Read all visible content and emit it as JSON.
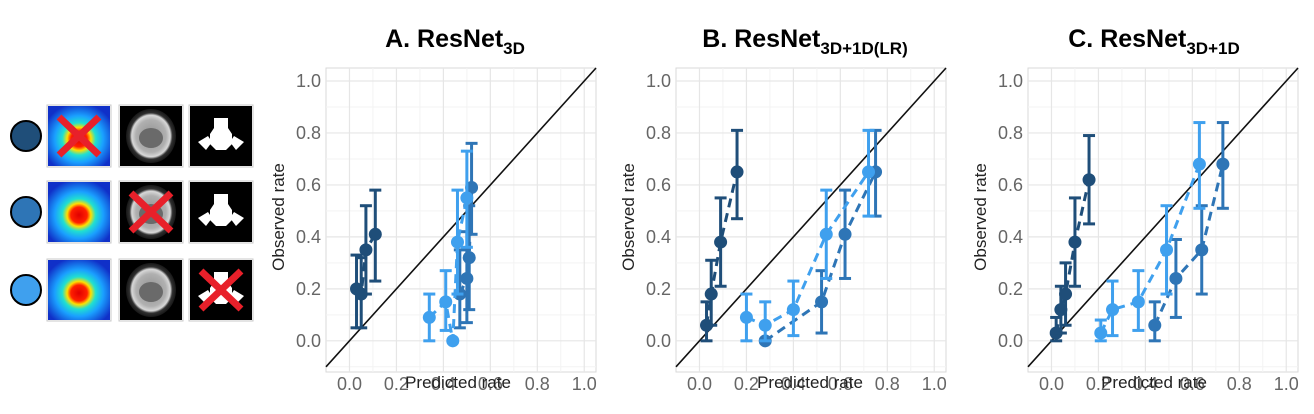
{
  "legend": {
    "rows": [
      {
        "color": "#1f4e79",
        "crossed": 1,
        "panels": [
          "dose-map",
          "ct-slice",
          "mask"
        ]
      },
      {
        "color": "#2e75b6",
        "crossed": 2,
        "panels": [
          "dose-map",
          "ct-slice",
          "mask"
        ]
      },
      {
        "color": "#3fa0ee",
        "crossed": 3,
        "panels": [
          "dose-map",
          "ct-slice",
          "mask"
        ]
      }
    ],
    "cross_color": "#e8202a"
  },
  "chart_data": [
    {
      "type": "scatter",
      "title": "A. ResNet",
      "title_sub": "3D",
      "xlabel": "Predicted rate",
      "ylabel": "Observed rate",
      "xlim": [
        -0.1,
        1.05
      ],
      "ylim": [
        -0.12,
        1.05
      ],
      "xticks": [
        "0.0",
        "0.2",
        "0.4",
        "0.6",
        "0.8",
        "1.0"
      ],
      "yticks": [
        "0.0",
        "0.2",
        "0.4",
        "0.6",
        "0.8",
        "1.0"
      ],
      "diagonal": true,
      "series": [
        {
          "name": "series-1",
          "color": "#1f4e79",
          "points": [
            {
              "x": 0.03,
              "y": 0.2,
              "lo": 0.05,
              "hi": 0.33
            },
            {
              "x": 0.05,
              "y": 0.18,
              "lo": 0.05,
              "hi": 0.32
            },
            {
              "x": 0.07,
              "y": 0.35,
              "lo": 0.18,
              "hi": 0.52
            },
            {
              "x": 0.11,
              "y": 0.41,
              "lo": 0.23,
              "hi": 0.58
            }
          ]
        },
        {
          "name": "series-2",
          "color": "#2e75b6",
          "points": [
            {
              "x": 0.47,
              "y": 0.18,
              "lo": 0.05,
              "hi": 0.35
            },
            {
              "x": 0.5,
              "y": 0.24,
              "lo": 0.07,
              "hi": 0.42
            },
            {
              "x": 0.51,
              "y": 0.32,
              "lo": 0.12,
              "hi": 0.52
            },
            {
              "x": 0.52,
              "y": 0.59,
              "lo": 0.41,
              "hi": 0.76
            }
          ]
        },
        {
          "name": "series-3",
          "color": "#3fa0ee",
          "points": [
            {
              "x": 0.34,
              "y": 0.09,
              "lo": 0.0,
              "hi": 0.18
            },
            {
              "x": 0.41,
              "y": 0.15,
              "lo": 0.04,
              "hi": 0.27
            },
            {
              "x": 0.44,
              "y": 0.0,
              "lo": 0.0,
              "hi": 0.0
            },
            {
              "x": 0.46,
              "y": 0.38,
              "lo": 0.18,
              "hi": 0.58
            },
            {
              "x": 0.5,
              "y": 0.55,
              "lo": 0.36,
              "hi": 0.73
            }
          ]
        }
      ]
    },
    {
      "type": "scatter",
      "title": "B. ResNet",
      "title_sub": "3D+1D(LR)",
      "xlabel": "Predicted rate",
      "ylabel": "Observed rate",
      "xlim": [
        -0.1,
        1.05
      ],
      "ylim": [
        -0.12,
        1.05
      ],
      "xticks": [
        "0.0",
        "0.2",
        "0.4",
        "0.6",
        "0.8",
        "1.0"
      ],
      "yticks": [
        "0.0",
        "0.2",
        "0.4",
        "0.6",
        "0.8",
        "1.0"
      ],
      "diagonal": true,
      "series": [
        {
          "name": "series-1",
          "color": "#1f4e79",
          "points": [
            {
              "x": 0.03,
              "y": 0.06,
              "lo": 0.0,
              "hi": 0.15
            },
            {
              "x": 0.05,
              "y": 0.18,
              "lo": 0.06,
              "hi": 0.31
            },
            {
              "x": 0.09,
              "y": 0.38,
              "lo": 0.21,
              "hi": 0.55
            },
            {
              "x": 0.16,
              "y": 0.65,
              "lo": 0.47,
              "hi": 0.81
            }
          ]
        },
        {
          "name": "series-2",
          "color": "#2e75b6",
          "points": [
            {
              "x": 0.28,
              "y": 0.0,
              "lo": 0.0,
              "hi": 0.0
            },
            {
              "x": 0.52,
              "y": 0.15,
              "lo": 0.03,
              "hi": 0.27
            },
            {
              "x": 0.62,
              "y": 0.41,
              "lo": 0.24,
              "hi": 0.58
            },
            {
              "x": 0.75,
              "y": 0.65,
              "lo": 0.48,
              "hi": 0.81
            }
          ]
        },
        {
          "name": "series-3",
          "color": "#3fa0ee",
          "points": [
            {
              "x": 0.2,
              "y": 0.09,
              "lo": 0.0,
              "hi": 0.18
            },
            {
              "x": 0.28,
              "y": 0.06,
              "lo": 0.0,
              "hi": 0.15
            },
            {
              "x": 0.4,
              "y": 0.12,
              "lo": 0.02,
              "hi": 0.23
            },
            {
              "x": 0.54,
              "y": 0.41,
              "lo": 0.24,
              "hi": 0.58
            },
            {
              "x": 0.72,
              "y": 0.65,
              "lo": 0.48,
              "hi": 0.81
            }
          ]
        }
      ]
    },
    {
      "type": "scatter",
      "title": "C. ResNet",
      "title_sub": "3D+1D",
      "xlabel": "Predicted rate",
      "ylabel": "Observed rate",
      "xlim": [
        -0.1,
        1.05
      ],
      "ylim": [
        -0.12,
        1.05
      ],
      "xticks": [
        "0.0",
        "0.2",
        "0.4",
        "0.6",
        "0.8",
        "1.0"
      ],
      "yticks": [
        "0.0",
        "0.2",
        "0.4",
        "0.6",
        "0.8",
        "1.0"
      ],
      "diagonal": true,
      "series": [
        {
          "name": "series-1",
          "color": "#1f4e79",
          "points": [
            {
              "x": 0.02,
              "y": 0.03,
              "lo": 0.0,
              "hi": 0.09
            },
            {
              "x": 0.04,
              "y": 0.12,
              "lo": 0.03,
              "hi": 0.21
            },
            {
              "x": 0.06,
              "y": 0.18,
              "lo": 0.06,
              "hi": 0.3
            },
            {
              "x": 0.1,
              "y": 0.38,
              "lo": 0.21,
              "hi": 0.55
            },
            {
              "x": 0.16,
              "y": 0.62,
              "lo": 0.45,
              "hi": 0.79
            }
          ]
        },
        {
          "name": "series-2",
          "color": "#2e75b6",
          "points": [
            {
              "x": 0.44,
              "y": 0.06,
              "lo": 0.0,
              "hi": 0.15
            },
            {
              "x": 0.53,
              "y": 0.24,
              "lo": 0.09,
              "hi": 0.39
            },
            {
              "x": 0.64,
              "y": 0.35,
              "lo": 0.18,
              "hi": 0.52
            },
            {
              "x": 0.73,
              "y": 0.68,
              "lo": 0.51,
              "hi": 0.84
            }
          ]
        },
        {
          "name": "series-3",
          "color": "#3fa0ee",
          "points": [
            {
              "x": 0.21,
              "y": 0.03,
              "lo": 0.0,
              "hi": 0.08
            },
            {
              "x": 0.26,
              "y": 0.12,
              "lo": 0.02,
              "hi": 0.23
            },
            {
              "x": 0.37,
              "y": 0.15,
              "lo": 0.04,
              "hi": 0.27
            },
            {
              "x": 0.49,
              "y": 0.35,
              "lo": 0.18,
              "hi": 0.52
            },
            {
              "x": 0.63,
              "y": 0.68,
              "lo": 0.51,
              "hi": 0.84
            }
          ]
        }
      ]
    }
  ]
}
